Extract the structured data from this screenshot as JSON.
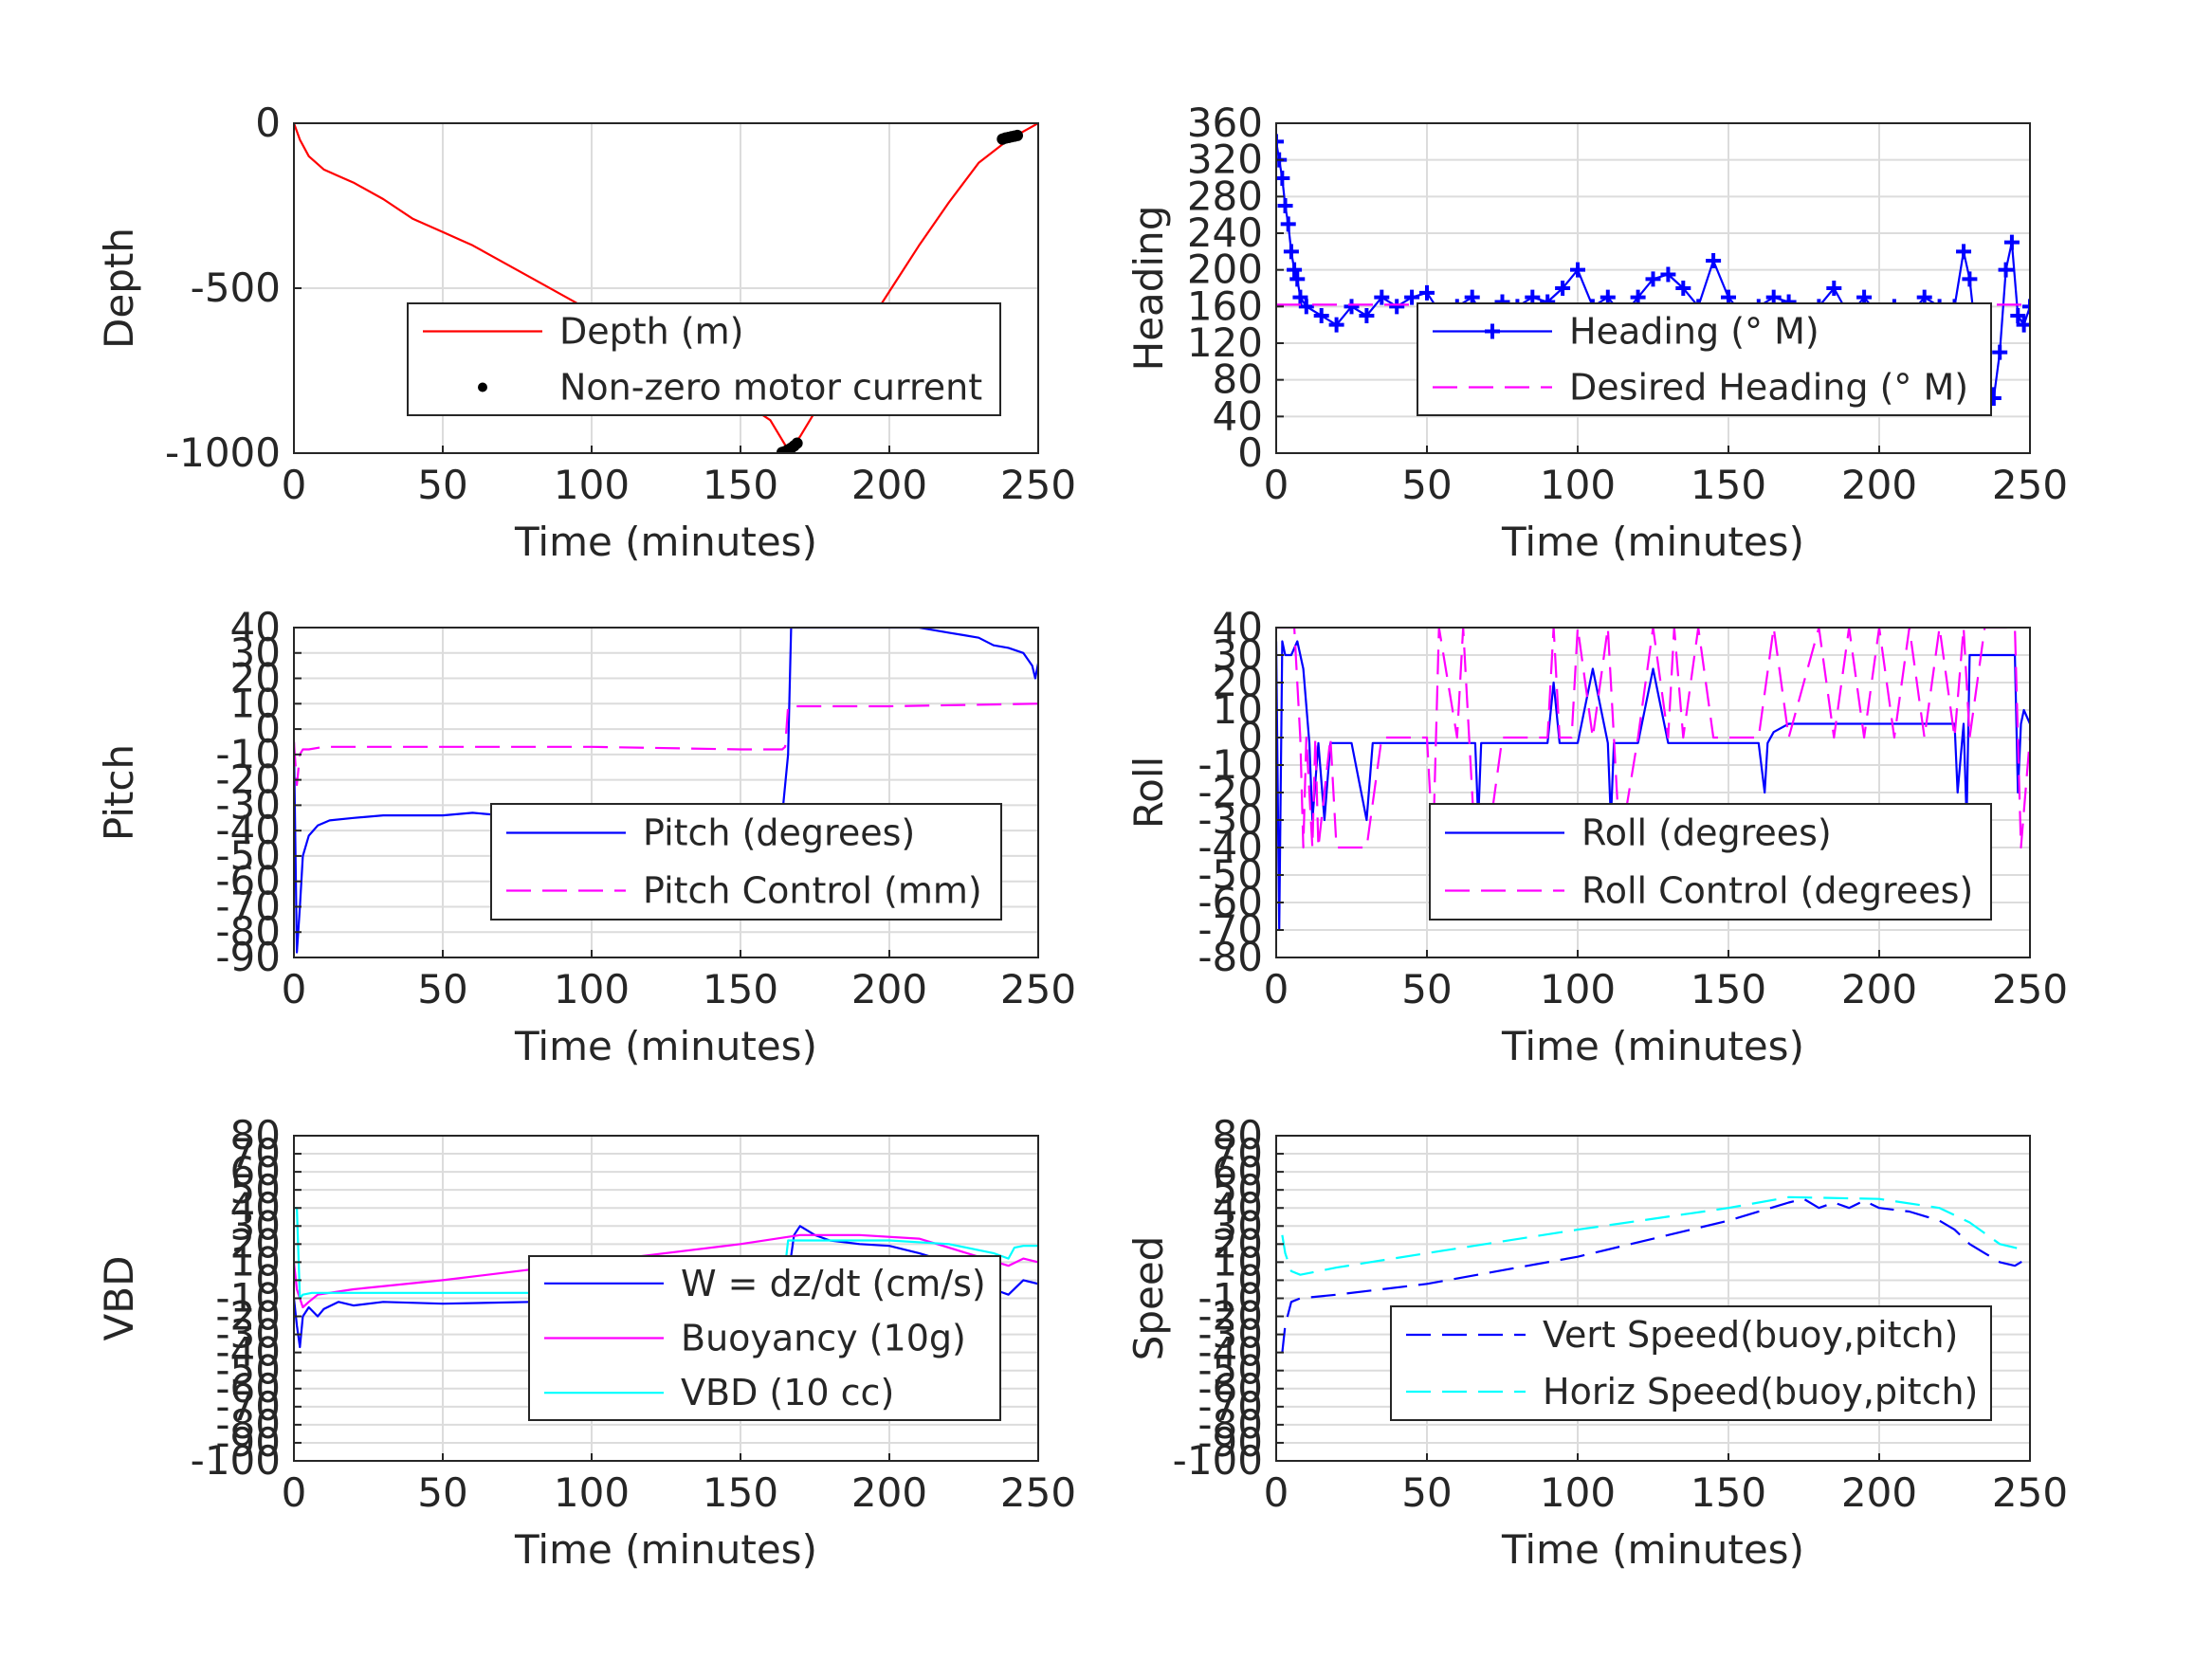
{
  "chart_data": [
    {
      "type": "line",
      "xlabel": "Time (minutes)",
      "ylabel": "Depth",
      "xlim": [
        0,
        250
      ],
      "ylim": [
        -1000,
        0
      ],
      "xticks": [
        0,
        50,
        100,
        150,
        200,
        250
      ],
      "yticks": [
        -1000,
        -500,
        0
      ],
      "grid": true,
      "legend_position": "bottom-right",
      "series": [
        {
          "name": "Depth (m)",
          "color": "#ff0000",
          "style": "solid",
          "x": [
            0,
            2,
            5,
            10,
            15,
            20,
            30,
            40,
            50,
            60,
            80,
            100,
            120,
            140,
            160,
            166,
            170,
            180,
            190,
            200,
            210,
            220,
            230,
            240,
            250
          ],
          "y": [
            0,
            -50,
            -100,
            -140,
            -160,
            -180,
            -230,
            -290,
            -330,
            -370,
            -470,
            -570,
            -670,
            -780,
            -900,
            -990,
            -950,
            -800,
            -650,
            -510,
            -370,
            -240,
            -120,
            -50,
            0
          ]
        },
        {
          "name": "Non-zero motor current",
          "color": "#000000",
          "style": "dots",
          "x": [
            164,
            165,
            166,
            167,
            168,
            169,
            238,
            239,
            240,
            241,
            242,
            243
          ],
          "y": [
            -998,
            -995,
            -990,
            -985,
            -978,
            -970,
            -48,
            -45,
            -43,
            -41,
            -39,
            -37
          ]
        }
      ]
    },
    {
      "type": "line",
      "xlabel": "Time (minutes)",
      "ylabel": "Heading",
      "xlim": [
        0,
        250
      ],
      "ylim": [
        0,
        360
      ],
      "xticks": [
        0,
        50,
        100,
        150,
        200,
        250
      ],
      "yticks": [
        0,
        40,
        80,
        120,
        160,
        200,
        240,
        280,
        320,
        360
      ],
      "grid": true,
      "legend_position": "bottom-right",
      "series": [
        {
          "name": "Heading (° M)",
          "color": "#0000ff",
          "style": "plus",
          "x": [
            0,
            1,
            2,
            3,
            4,
            5,
            6,
            7,
            8,
            10,
            15,
            20,
            25,
            30,
            35,
            40,
            45,
            50,
            55,
            60,
            65,
            70,
            75,
            80,
            85,
            90,
            95,
            100,
            105,
            110,
            115,
            120,
            125,
            130,
            135,
            140,
            145,
            150,
            155,
            160,
            165,
            170,
            175,
            180,
            185,
            190,
            195,
            200,
            205,
            210,
            215,
            220,
            225,
            228,
            230,
            232,
            234,
            236,
            238,
            240,
            242,
            244,
            246,
            248,
            250
          ],
          "y": [
            340,
            320,
            300,
            270,
            250,
            220,
            200,
            190,
            170,
            160,
            150,
            140,
            160,
            150,
            170,
            160,
            170,
            175,
            150,
            160,
            170,
            140,
            165,
            160,
            170,
            165,
            180,
            200,
            160,
            170,
            150,
            170,
            190,
            195,
            180,
            160,
            210,
            170,
            150,
            160,
            170,
            165,
            150,
            160,
            180,
            150,
            170,
            150,
            160,
            150,
            170,
            160,
            160,
            220,
            190,
            130,
            100,
            70,
            60,
            110,
            200,
            230,
            150,
            140,
            160
          ]
        },
        {
          "name": "Desired Heading (° M)",
          "color": "#ff00ff",
          "style": "dash",
          "x": [
            0,
            250
          ],
          "y": [
            162,
            162
          ]
        }
      ]
    },
    {
      "type": "line",
      "xlabel": "Time (minutes)",
      "ylabel": "Pitch",
      "xlim": [
        0,
        250
      ],
      "ylim": [
        -90,
        40
      ],
      "xticks": [
        0,
        50,
        100,
        150,
        200,
        250
      ],
      "yticks": [
        -90,
        -80,
        -70,
        -60,
        -50,
        -40,
        -30,
        -20,
        -10,
        0,
        10,
        20,
        30,
        40
      ],
      "grid": true,
      "legend_position": "bottom-right",
      "series": [
        {
          "name": "Pitch (degrees)",
          "color": "#0000ff",
          "style": "solid",
          "x": [
            0,
            1,
            2,
            3,
            5,
            8,
            12,
            20,
            30,
            40,
            50,
            60,
            70,
            80,
            90,
            100,
            110,
            120,
            130,
            140,
            150,
            160,
            164,
            166,
            167,
            170,
            180,
            190,
            200,
            210,
            220,
            225,
            230,
            235,
            240,
            245,
            248,
            249,
            250
          ],
          "y": [
            -5,
            -88,
            -70,
            -50,
            -42,
            -38,
            -36,
            -35,
            -34,
            -34,
            -34,
            -33,
            -34,
            -33,
            -34,
            -33,
            -34,
            -33,
            -34,
            -33,
            -34,
            -33,
            -34,
            -10,
            40,
            40,
            40,
            40,
            40,
            40,
            38,
            37,
            36,
            33,
            32,
            30,
            25,
            20,
            26
          ]
        },
        {
          "name": "Pitch Control (mm)",
          "color": "#ff00ff",
          "style": "dash",
          "x": [
            0,
            1,
            2,
            3,
            5,
            10,
            20,
            50,
            100,
            150,
            164,
            165,
            166,
            170,
            200,
            250
          ],
          "y": [
            -5,
            -22,
            -10,
            -8,
            -8,
            -7,
            -7,
            -7,
            -7,
            -8,
            -8,
            -7,
            9,
            9,
            9,
            10
          ]
        }
      ]
    },
    {
      "type": "line",
      "xlabel": "Time (minutes)",
      "ylabel": "Roll",
      "xlim": [
        0,
        250
      ],
      "ylim": [
        -80,
        40
      ],
      "xticks": [
        0,
        50,
        100,
        150,
        200,
        250
      ],
      "yticks": [
        -80,
        -70,
        -60,
        -50,
        -40,
        -30,
        -20,
        -10,
        0,
        10,
        20,
        30,
        40
      ],
      "grid": true,
      "legend_position": "bottom-right",
      "series": [
        {
          "name": "Roll (degrees)",
          "color": "#0000ff",
          "style": "solid",
          "x": [
            0,
            1,
            2,
            3,
            5,
            7,
            9,
            11,
            12,
            14,
            16,
            18,
            20,
            25,
            30,
            32,
            34,
            40,
            50,
            60,
            66,
            67,
            68,
            70,
            80,
            90,
            92,
            94,
            100,
            105,
            110,
            111,
            112,
            114,
            120,
            125,
            130,
            140,
            150,
            160,
            162,
            163,
            165,
            170,
            180,
            190,
            200,
            210,
            220,
            225,
            226,
            228,
            229,
            230,
            240,
            245,
            246,
            247,
            248,
            250
          ],
          "y": [
            35,
            -70,
            35,
            30,
            30,
            35,
            25,
            -2,
            -30,
            -2,
            -30,
            -2,
            -2,
            -2,
            -30,
            -2,
            -2,
            -2,
            -2,
            -2,
            -2,
            -30,
            -2,
            -2,
            -2,
            -2,
            20,
            -2,
            -2,
            25,
            -2,
            -30,
            -2,
            -2,
            -2,
            25,
            -2,
            -2,
            -2,
            -2,
            -20,
            -2,
            2,
            5,
            5,
            5,
            5,
            5,
            5,
            5,
            -20,
            5,
            -30,
            30,
            30,
            30,
            -20,
            5,
            10,
            5
          ]
        },
        {
          "name": "Roll Control (degrees)",
          "color": "#ff00ff",
          "style": "dash",
          "x": [
            0,
            2,
            4,
            6,
            8,
            9,
            10,
            12,
            13,
            14,
            18,
            20,
            30,
            35,
            40,
            50,
            52,
            54,
            60,
            62,
            64,
            66,
            70,
            75,
            80,
            90,
            92,
            94,
            98,
            100,
            105,
            110,
            112,
            114,
            120,
            125,
            130,
            132,
            135,
            140,
            145,
            150,
            160,
            165,
            170,
            180,
            185,
            190,
            195,
            200,
            205,
            210,
            215,
            220,
            225,
            228,
            230,
            235,
            240,
            245,
            247,
            250
          ],
          "y": [
            40,
            40,
            40,
            40,
            0,
            -40,
            0,
            -40,
            0,
            -40,
            0,
            -40,
            -40,
            0,
            0,
            0,
            -40,
            40,
            0,
            40,
            0,
            -40,
            -40,
            0,
            0,
            0,
            40,
            0,
            0,
            40,
            0,
            40,
            0,
            -40,
            0,
            40,
            0,
            40,
            0,
            40,
            0,
            0,
            0,
            40,
            0,
            40,
            0,
            40,
            0,
            40,
            0,
            40,
            0,
            40,
            0,
            40,
            0,
            40,
            40,
            40,
            -40,
            0
          ]
        }
      ]
    },
    {
      "type": "line",
      "xlabel": "Time (minutes)",
      "ylabel": "VBD",
      "xlim": [
        0,
        250
      ],
      "ylim": [
        -100,
        80
      ],
      "xticks": [
        0,
        50,
        100,
        150,
        200,
        250
      ],
      "yticks": [
        -100,
        -90,
        -80,
        -70,
        -60,
        -50,
        -40,
        -30,
        -20,
        -10,
        0,
        10,
        20,
        30,
        40,
        50,
        60,
        70,
        80
      ],
      "grid": true,
      "legend_position": "bottom-right",
      "series": [
        {
          "name": "W = dz/dt (cm/s)",
          "color": "#0000ff",
          "style": "solid",
          "x": [
            0,
            1,
            2,
            3,
            5,
            8,
            10,
            15,
            20,
            30,
            50,
            80,
            100,
            120,
            140,
            160,
            165,
            168,
            170,
            175,
            180,
            190,
            200,
            210,
            220,
            230,
            235,
            240,
            245,
            250
          ],
          "y": [
            -10,
            -25,
            -37,
            -20,
            -15,
            -20,
            -16,
            -12,
            -14,
            -12,
            -13,
            -12,
            -12,
            -11,
            -12,
            -12,
            -10,
            25,
            30,
            25,
            22,
            20,
            19,
            15,
            10,
            0,
            -5,
            -8,
            0,
            -2
          ]
        },
        {
          "name": "Buoyancy (10g)",
          "color": "#ff00ff",
          "style": "solid",
          "x": [
            0,
            1,
            3,
            5,
            8,
            20,
            50,
            100,
            150,
            170,
            190,
            210,
            220,
            230,
            240,
            245,
            250
          ],
          "y": [
            10,
            -5,
            -15,
            -12,
            -8,
            -5,
            0,
            10,
            20,
            25,
            25,
            23,
            18,
            13,
            8,
            12,
            10
          ]
        },
        {
          "name": "VBD (10 cc)",
          "color": "#00ffff",
          "style": "solid",
          "x": [
            0,
            1,
            2,
            3,
            6,
            10,
            50,
            100,
            150,
            164,
            166,
            170,
            200,
            220,
            235,
            240,
            242,
            245,
            250
          ],
          "y": [
            40,
            40,
            -10,
            -8,
            -7,
            -7,
            -7,
            -7,
            -7,
            -7,
            22,
            22,
            22,
            20,
            15,
            12,
            18,
            19,
            19
          ]
        }
      ]
    },
    {
      "type": "line",
      "xlabel": "Time (minutes)",
      "ylabel": "Speed",
      "xlim": [
        0,
        250
      ],
      "ylim": [
        -100,
        80
      ],
      "xticks": [
        0,
        50,
        100,
        150,
        200,
        250
      ],
      "yticks": [
        -100,
        -90,
        -80,
        -70,
        -60,
        -50,
        -40,
        -30,
        -20,
        -10,
        0,
        10,
        20,
        30,
        40,
        50,
        60,
        70,
        80
      ],
      "grid": true,
      "legend_position": "bottom-right",
      "series": [
        {
          "name": "Vert Speed(buoy,pitch)",
          "color": "#0000ff",
          "style": "dash",
          "x": [
            2,
            3,
            5,
            8,
            20,
            50,
            100,
            150,
            170,
            175,
            180,
            185,
            190,
            195,
            200,
            210,
            220,
            225,
            230,
            235,
            240,
            245,
            248
          ],
          "y": [
            -40,
            -25,
            -12,
            -10,
            -8,
            -2,
            13,
            33,
            43,
            45,
            40,
            43,
            40,
            44,
            40,
            38,
            33,
            28,
            20,
            15,
            10,
            8,
            11
          ]
        },
        {
          "name": "Horiz Speed(buoy,pitch)",
          "color": "#00ffff",
          "style": "dash",
          "x": [
            2,
            3,
            5,
            8,
            20,
            50,
            100,
            150,
            170,
            200,
            220,
            230,
            235,
            240,
            245,
            248
          ],
          "y": [
            25,
            15,
            5,
            3,
            7,
            15,
            28,
            40,
            46,
            45,
            40,
            32,
            26,
            20,
            18,
            17
          ]
        }
      ]
    }
  ]
}
